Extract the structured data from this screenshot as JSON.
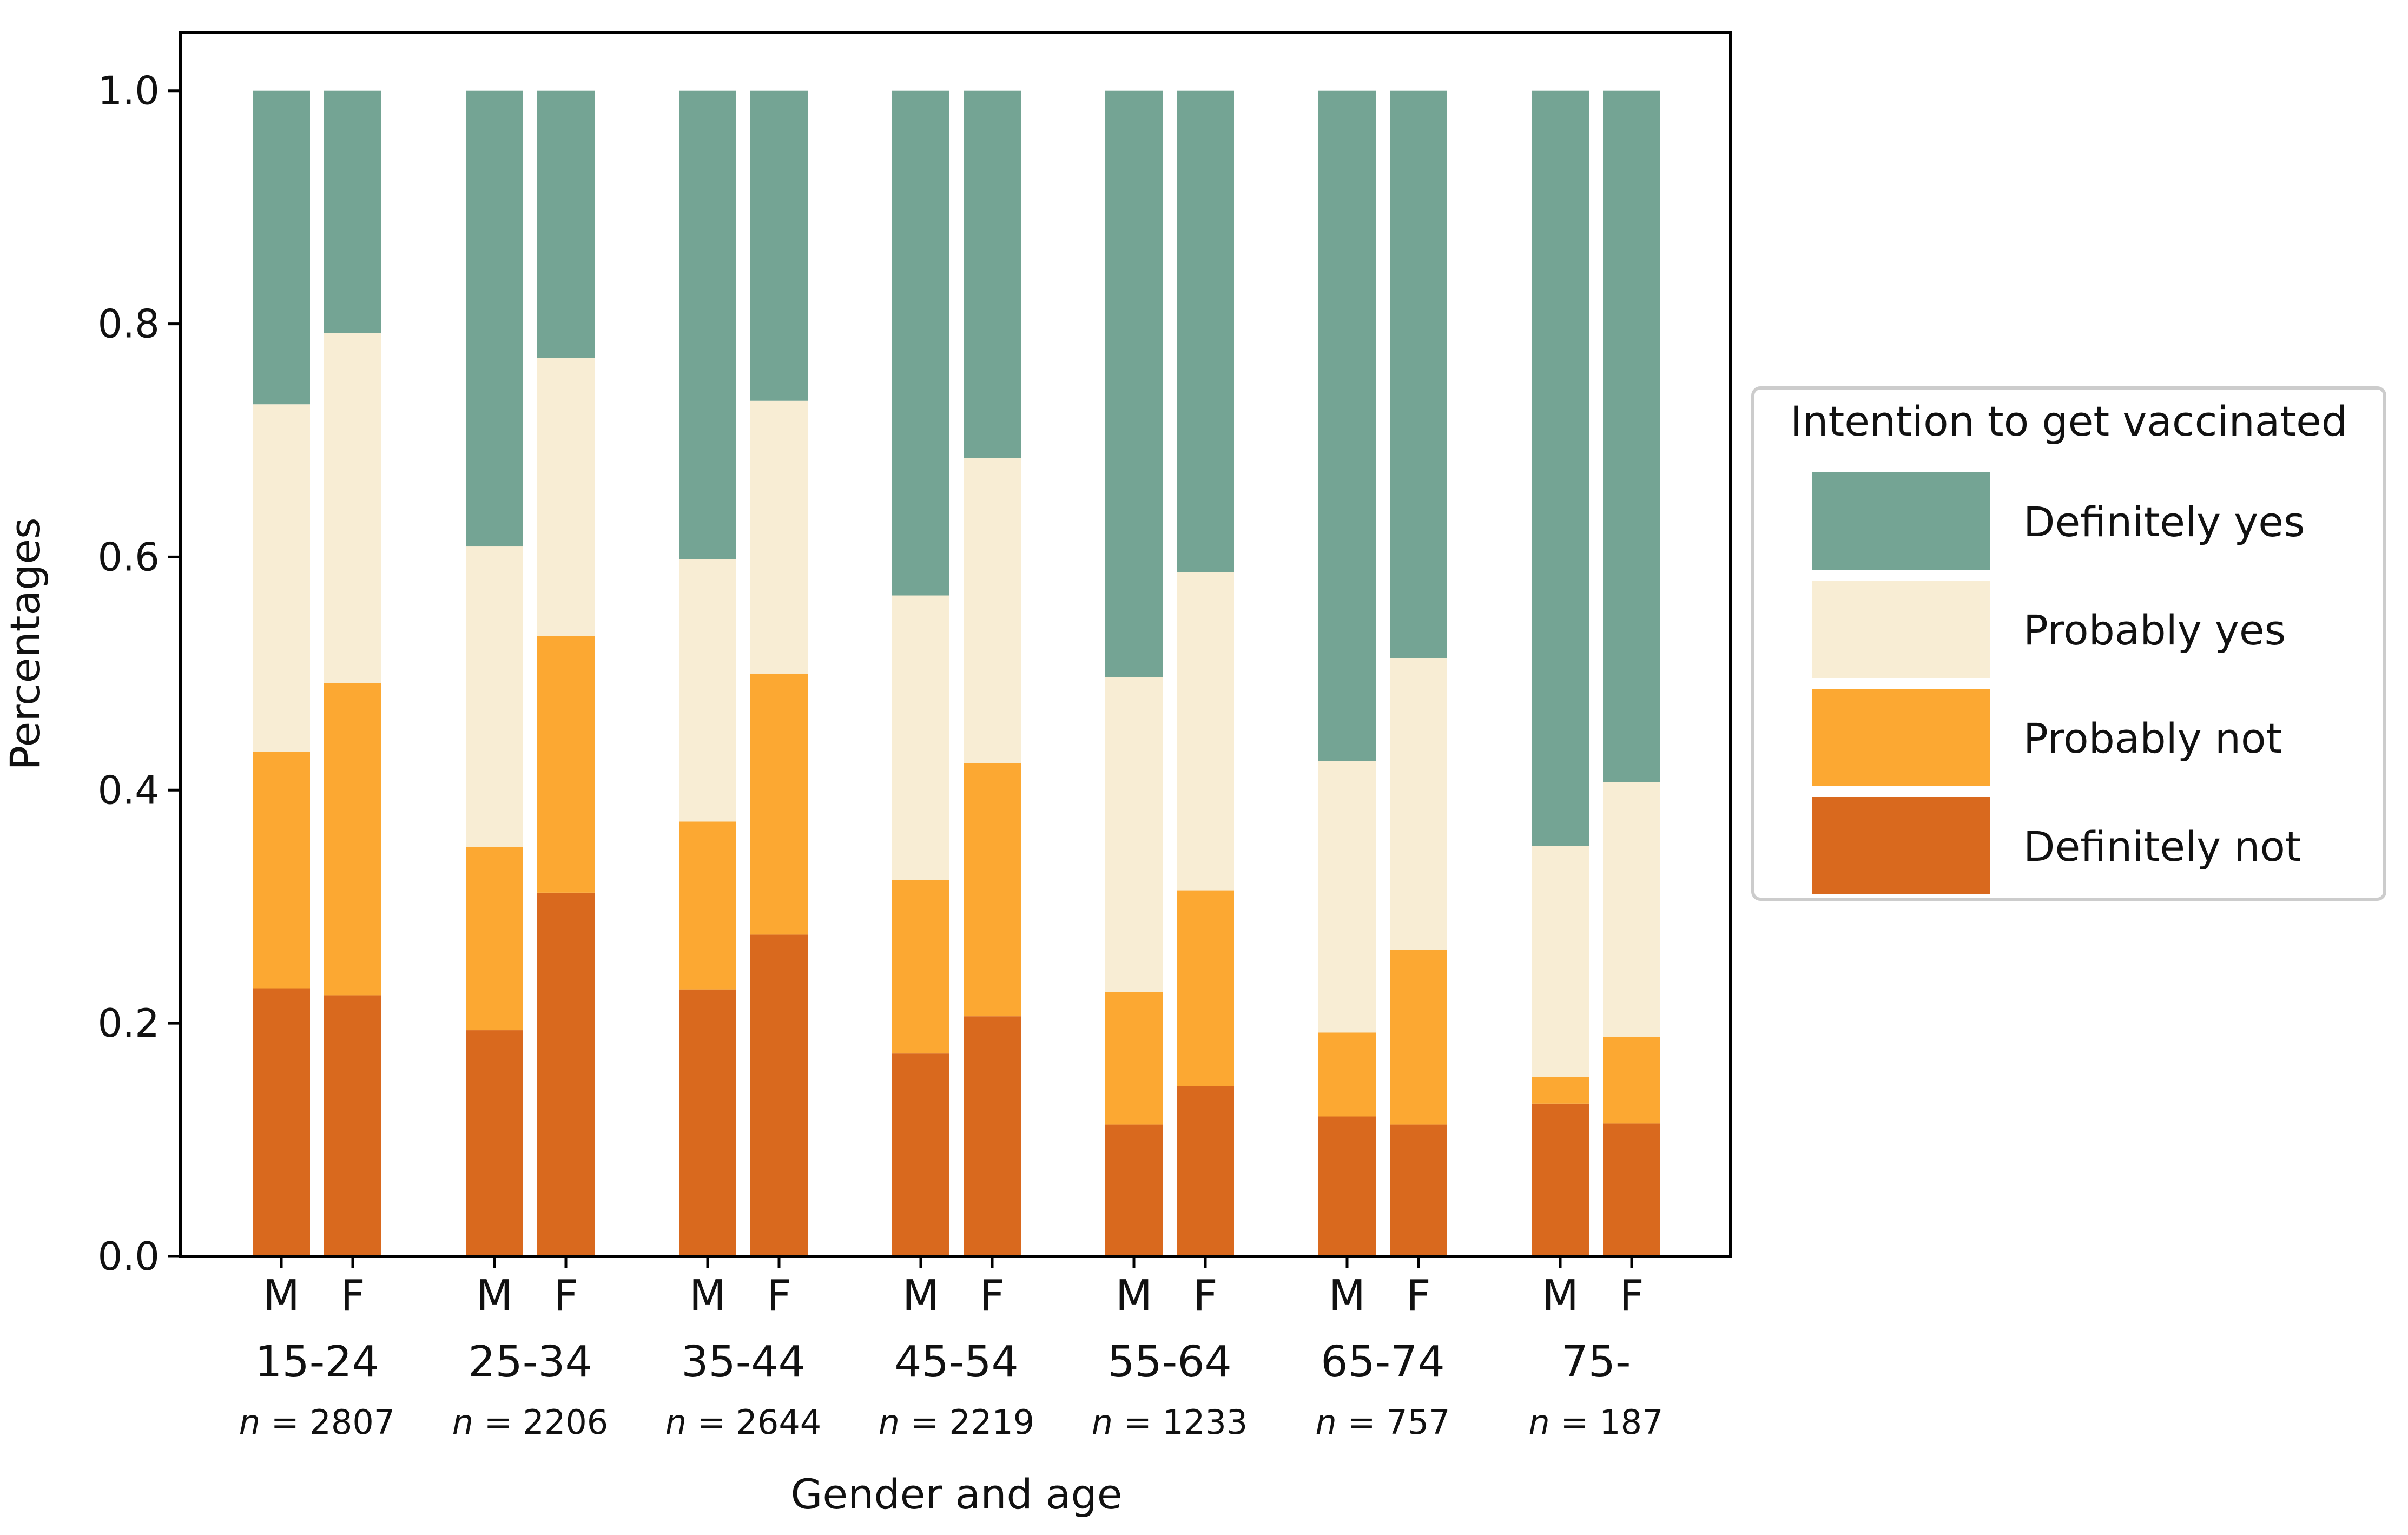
{
  "chart_data": {
    "type": "bar",
    "stacked": true,
    "title": "",
    "xlabel": "Gender and age",
    "ylabel": "Percentages",
    "ylim": [
      0,
      1.05
    ],
    "yticks": [
      0.0,
      0.2,
      0.4,
      0.6,
      0.8,
      1.0
    ],
    "ytick_labels": [
      "0.0",
      "0.2",
      "0.4",
      "0.6",
      "0.8",
      "1.0"
    ],
    "groups": [
      {
        "age": "15-24",
        "n_prefix": "n",
        "n_value": "=  2807"
      },
      {
        "age": "25-34",
        "n_prefix": "n",
        "n_value": "=  2206"
      },
      {
        "age": "35-44",
        "n_prefix": "n",
        "n_value": "=  2644"
      },
      {
        "age": "45-54",
        "n_prefix": "n",
        "n_value": "=  2219"
      },
      {
        "age": "55-64",
        "n_prefix": "n",
        "n_value": "=  1233"
      },
      {
        "age": "65-74",
        "n_prefix": "n",
        "n_value": "=  757"
      },
      {
        "age": "75-",
        "n_prefix": "n",
        "n_value": "=  187"
      }
    ],
    "genders": [
      "M",
      "F"
    ],
    "categories": [
      "15-24 M",
      "15-24 F",
      "25-34 M",
      "25-34 F",
      "35-44 M",
      "35-44 F",
      "45-54 M",
      "45-54 F",
      "55-64 M",
      "55-64 F",
      "65-74 M",
      "65-74 F",
      "75- M",
      "75- F"
    ],
    "series": [
      {
        "name": "Definitely not",
        "color": "#d9691e",
        "values": [
          0.23,
          0.224,
          0.194,
          0.312,
          0.229,
          0.276,
          0.174,
          0.206,
          0.113,
          0.146,
          0.12,
          0.113,
          0.131,
          0.114
        ]
      },
      {
        "name": "Probably not",
        "color": "#fca832",
        "values": [
          0.203,
          0.268,
          0.157,
          0.22,
          0.144,
          0.224,
          0.149,
          0.217,
          0.114,
          0.168,
          0.072,
          0.15,
          0.023,
          0.074
        ]
      },
      {
        "name": "Probably yes",
        "color": "#f8edd4",
        "values": [
          0.298,
          0.3,
          0.258,
          0.239,
          0.225,
          0.234,
          0.244,
          0.262,
          0.27,
          0.273,
          0.233,
          0.25,
          0.198,
          0.219
        ]
      },
      {
        "name": "Definitely yes",
        "color": "#74a494",
        "values": [
          0.269,
          0.208,
          0.391,
          0.229,
          0.402,
          0.266,
          0.433,
          0.315,
          0.503,
          0.413,
          0.575,
          0.487,
          0.648,
          0.593
        ]
      }
    ],
    "legend": {
      "title": "Intention to get vaccinated",
      "placement": "right",
      "entries": [
        "Definitely yes",
        "Probably yes",
        "Probably not",
        "Definitely not"
      ]
    }
  }
}
